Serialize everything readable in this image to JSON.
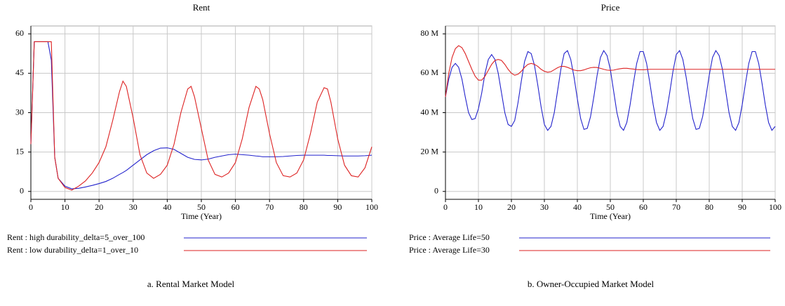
{
  "chart_data": [
    {
      "type": "line",
      "title": "Rent",
      "xlabel": "Time (Year)",
      "caption": "a. Rental Market Model",
      "xlim": [
        0,
        100
      ],
      "xticks": [
        0,
        10,
        20,
        30,
        40,
        50,
        60,
        70,
        80,
        90,
        100
      ],
      "ylim": [
        -3,
        63
      ],
      "yticks": [
        0,
        15,
        30,
        45,
        60
      ],
      "grid": true,
      "x": [
        0,
        1,
        5,
        6,
        7,
        8,
        10,
        12,
        14,
        16,
        18,
        20,
        22,
        24,
        26,
        27,
        28,
        30,
        32,
        34,
        36,
        38,
        40,
        42,
        44,
        46,
        47,
        48,
        50,
        52,
        54,
        56,
        58,
        60,
        62,
        64,
        66,
        67,
        68,
        70,
        72,
        74,
        76,
        78,
        80,
        82,
        84,
        86,
        87,
        88,
        90,
        92,
        94,
        96,
        98,
        100
      ],
      "series": [
        {
          "name": "Rent : high durability_delta=5_over_100",
          "color": "#2222cc",
          "values": [
            18,
            57,
            57,
            50,
            13,
            5,
            2,
            1,
            1.2,
            1.7,
            2.3,
            3,
            3.8,
            5,
            6.5,
            7.2,
            8,
            10,
            12,
            14,
            15.5,
            16.5,
            16.6,
            16,
            14.5,
            13,
            12.6,
            12.2,
            12,
            12.3,
            13,
            13.5,
            14,
            14.2,
            14,
            13.8,
            13.5,
            13.4,
            13.2,
            13.2,
            13.2,
            13.3,
            13.5,
            13.7,
            13.8,
            13.8,
            13.8,
            13.8,
            13.7,
            13.7,
            13.6,
            13.5,
            13.5,
            13.5,
            13.6,
            13.8
          ]
        },
        {
          "name": "Rent : low durability_delta=1_over_10",
          "color": "#dd2222",
          "values": [
            18,
            57,
            57,
            57,
            13,
            5,
            1.5,
            0.5,
            2,
            4,
            7,
            11,
            17,
            27,
            38,
            42,
            40,
            28,
            14,
            7,
            5,
            6.5,
            10,
            18,
            30,
            39,
            40,
            36,
            24,
            12,
            6.5,
            5.5,
            7,
            11,
            20,
            32,
            40,
            39,
            35,
            22,
            11,
            6,
            5.5,
            7,
            12,
            22,
            34,
            39.5,
            39,
            34,
            20,
            10,
            6,
            5.5,
            9,
            17
          ]
        }
      ]
    },
    {
      "type": "line",
      "title": "Price",
      "xlabel": "Time (Year)",
      "caption": "b. Owner-Occupied Market Model",
      "xlim": [
        0,
        100
      ],
      "xticks": [
        0,
        10,
        20,
        30,
        40,
        50,
        60,
        70,
        80,
        90,
        100
      ],
      "ylim": [
        -4000000,
        84000000
      ],
      "yticks": [
        0,
        {
          "value": 20000000,
          "label": "20 M"
        },
        {
          "value": 40000000,
          "label": "40 M"
        },
        {
          "value": 60000000,
          "label": "60 M"
        },
        {
          "value": 80000000,
          "label": "80 M"
        }
      ],
      "grid": true,
      "x": [
        0,
        1,
        2,
        3,
        4,
        5,
        6,
        7,
        8,
        9,
        10,
        11,
        12,
        13,
        14,
        15,
        16,
        17,
        18,
        19,
        20,
        21,
        22,
        23,
        24,
        25,
        26,
        27,
        28,
        29,
        30,
        31,
        32,
        33,
        34,
        35,
        36,
        37,
        38,
        39,
        40,
        41,
        42,
        43,
        44,
        45,
        46,
        47,
        48,
        49,
        50,
        51,
        52,
        53,
        54,
        55,
        56,
        57,
        58,
        59,
        60,
        61,
        62,
        63,
        64,
        65,
        66,
        67,
        68,
        69,
        70,
        71,
        72,
        73,
        74,
        75,
        76,
        77,
        78,
        79,
        80,
        81,
        82,
        83,
        84,
        85,
        86,
        87,
        88,
        89,
        90,
        91,
        92,
        93,
        94,
        95,
        96,
        97,
        98,
        99,
        100
      ],
      "series": [
        {
          "name": "Price : Average Life=50",
          "color": "#2222cc",
          "values": [
            48000000,
            57000000,
            63000000,
            65000000,
            63000000,
            57000000,
            48000000,
            40000000,
            36500000,
            37000000,
            42000000,
            50000000,
            60000000,
            67000000,
            69500000,
            67000000,
            60000000,
            50000000,
            40000000,
            34000000,
            33000000,
            36000000,
            45000000,
            56000000,
            66000000,
            71000000,
            70000000,
            64000000,
            54000000,
            43000000,
            34000000,
            31000000,
            33000000,
            40000000,
            51000000,
            62000000,
            70000000,
            71500000,
            67000000,
            58000000,
            47000000,
            37000000,
            31500000,
            32000000,
            38000000,
            48000000,
            59000000,
            68000000,
            71500000,
            69000000,
            62000000,
            51000000,
            40000000,
            33000000,
            31000000,
            35000000,
            44000000,
            55000000,
            65000000,
            71000000,
            71000000,
            65000000,
            55000000,
            44000000,
            35000000,
            31000000,
            33000000,
            40000000,
            50000000,
            61000000,
            69500000,
            71500000,
            67000000,
            58000000,
            47000000,
            37000000,
            31500000,
            32000000,
            38000000,
            48000000,
            59000000,
            68000000,
            71500000,
            69000000,
            62000000,
            51000000,
            40000000,
            33000000,
            31000000,
            35000000,
            44000000,
            55000000,
            65000000,
            71000000,
            71000000,
            65000000,
            55000000,
            44000000,
            35000000,
            31000000,
            33000000
          ]
        },
        {
          "name": "Price : Average Life=30",
          "color": "#dd2222",
          "values": [
            48000000,
            60000000,
            68000000,
            72500000,
            74000000,
            73000000,
            70000000,
            66000000,
            62000000,
            58500000,
            56500000,
            56500000,
            58500000,
            61500000,
            64500000,
            66500000,
            67000000,
            66500000,
            64500000,
            62000000,
            60000000,
            59000000,
            59500000,
            61000000,
            63000000,
            64500000,
            65000000,
            64500000,
            63500000,
            62000000,
            61000000,
            60500000,
            60800000,
            61800000,
            62800000,
            63500000,
            63500000,
            63000000,
            62300000,
            61600000,
            61300000,
            61300000,
            61700000,
            62300000,
            62800000,
            63000000,
            62900000,
            62500000,
            62000000,
            61600000,
            61500000,
            61600000,
            62000000,
            62300000,
            62500000,
            62500000,
            62300000,
            62100000,
            61900000,
            61800000,
            61800000,
            61900000,
            62000000,
            62000000,
            62000000,
            62000000,
            62000000,
            62000000,
            62000000,
            62000000,
            62000000,
            62000000,
            62000000,
            62000000,
            62000000,
            62000000,
            62000000,
            62000000,
            62000000,
            62000000,
            62000000,
            62000000,
            62000000,
            62000000,
            62000000,
            62000000,
            62000000,
            62000000,
            62000000,
            62000000,
            62000000,
            62000000,
            62000000,
            62000000,
            62000000,
            62000000,
            62000000,
            62000000,
            62000000,
            62000000,
            62000000
          ]
        }
      ]
    }
  ]
}
